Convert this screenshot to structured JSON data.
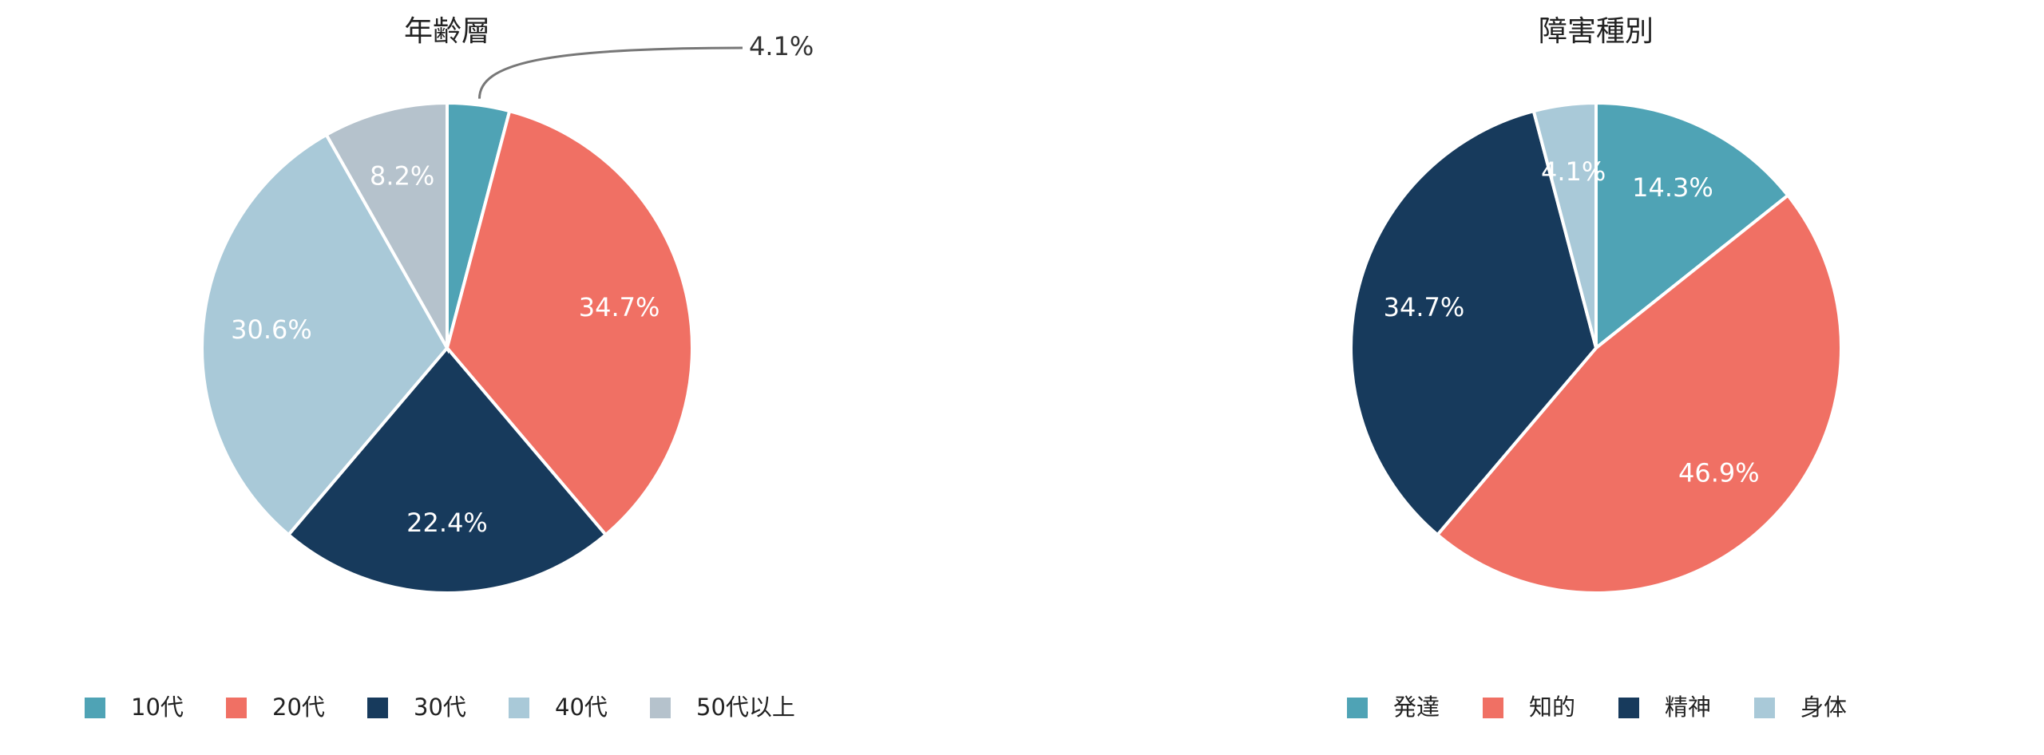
{
  "chart_data": [
    {
      "type": "pie",
      "title": "年齢層",
      "categories": [
        "10代",
        "20代",
        "30代",
        "40代",
        "50代以上"
      ],
      "values": [
        4.1,
        34.7,
        22.4,
        30.6,
        8.2
      ],
      "value_labels": [
        "4.1%",
        "34.7%",
        "22.4%",
        "30.6%",
        "8.2%"
      ],
      "colors": [
        "#4fa3b5",
        "#f07064",
        "#173a5c",
        "#a9c9d8",
        "#b5c2cc"
      ],
      "legend": "bottom"
    },
    {
      "type": "pie",
      "title": "障害種別",
      "categories": [
        "発達",
        "知的",
        "精神",
        "身体"
      ],
      "values": [
        14.3,
        46.9,
        34.7,
        4.1
      ],
      "value_labels": [
        "14.3%",
        "46.9%",
        "34.7%",
        "4.1%"
      ],
      "colors": [
        "#4fa3b5",
        "#f07064",
        "#173a5c",
        "#a9c9d8"
      ],
      "legend": "bottom"
    }
  ]
}
